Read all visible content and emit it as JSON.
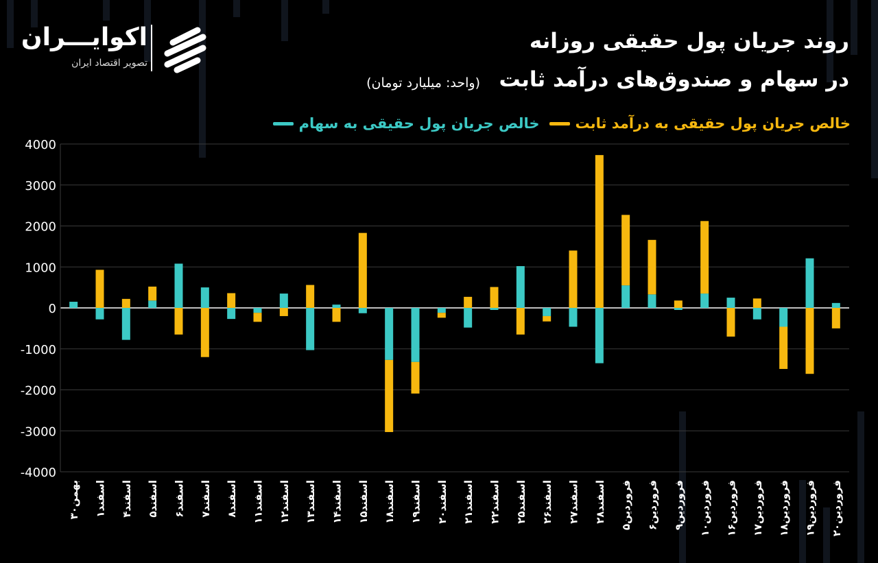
{
  "header": {
    "logo_name": "اکوایـــران",
    "logo_tagline": "تصویر اقتصاد ایران",
    "title_line1": "روند جریان پول حقیقی روزانه",
    "title_line2": "در سهام و صندوق‌های درآمد ثابت",
    "unit": "(واحد: میلیارد تومان)"
  },
  "colors": {
    "stocks": "#3cc9c5",
    "fixed_income": "#f7b80f",
    "background": "#000000",
    "grid": "#3a3a3a",
    "text": "#ffffff"
  },
  "chart_data": {
    "type": "bar",
    "stacked": true,
    "grid": true,
    "legend_position": "top-right",
    "ylim": [
      -4000,
      4000
    ],
    "yticks": [
      "4000",
      "3000",
      "2000",
      "1000",
      "0",
      "-1000",
      "-2000",
      "-3000",
      "-4000"
    ],
    "categories": [
      "۳۰بهمن",
      "۱اسفند",
      "۴اسفند",
      "۵اسفند",
      "۶اسفند",
      "۷اسفند",
      "۸اسفند",
      "۱۱اسفند",
      "۱۲اسفند",
      "۱۳اسفند",
      "۱۴اسفند",
      "۱۵اسفند",
      "۱۸اسفند",
      "۱۹اسفند",
      "۲۰اسفند",
      "۲۱اسفند",
      "۲۲اسفند",
      "۲۵اسفند",
      "۲۶اسفند",
      "۲۷اسفند",
      "۲۸اسفند",
      "۵فروردین",
      "۶فروردین",
      "۹فروردین",
      "۱۰فروردین",
      "۱۶فروردین",
      "۱۷فروردین",
      "۱۸فروردین",
      "۱۹فروردین",
      "۲۰فروردین"
    ],
    "series": [
      {
        "name": "خالص جریان پول حقیقی به سهام",
        "values": [
          150,
          -280,
          -780,
          180,
          1080,
          500,
          -270,
          -120,
          350,
          -1030,
          80,
          -130,
          -1270,
          -1320,
          -120,
          -480,
          -50,
          1020,
          -200,
          -460,
          -1350,
          550,
          330,
          -50,
          350,
          250,
          -280,
          -460,
          1210,
          120
        ]
      },
      {
        "name": "خالص جریان پول حقیقی به درآمد ثابت",
        "values": [
          0,
          930,
          220,
          340,
          -650,
          -1200,
          360,
          -220,
          -200,
          560,
          -340,
          1830,
          -1760,
          -770,
          -120,
          270,
          510,
          -650,
          -130,
          1400,
          3730,
          1720,
          1330,
          180,
          1770,
          -700,
          230,
          -1030,
          -1610,
          -500
        ]
      }
    ]
  }
}
